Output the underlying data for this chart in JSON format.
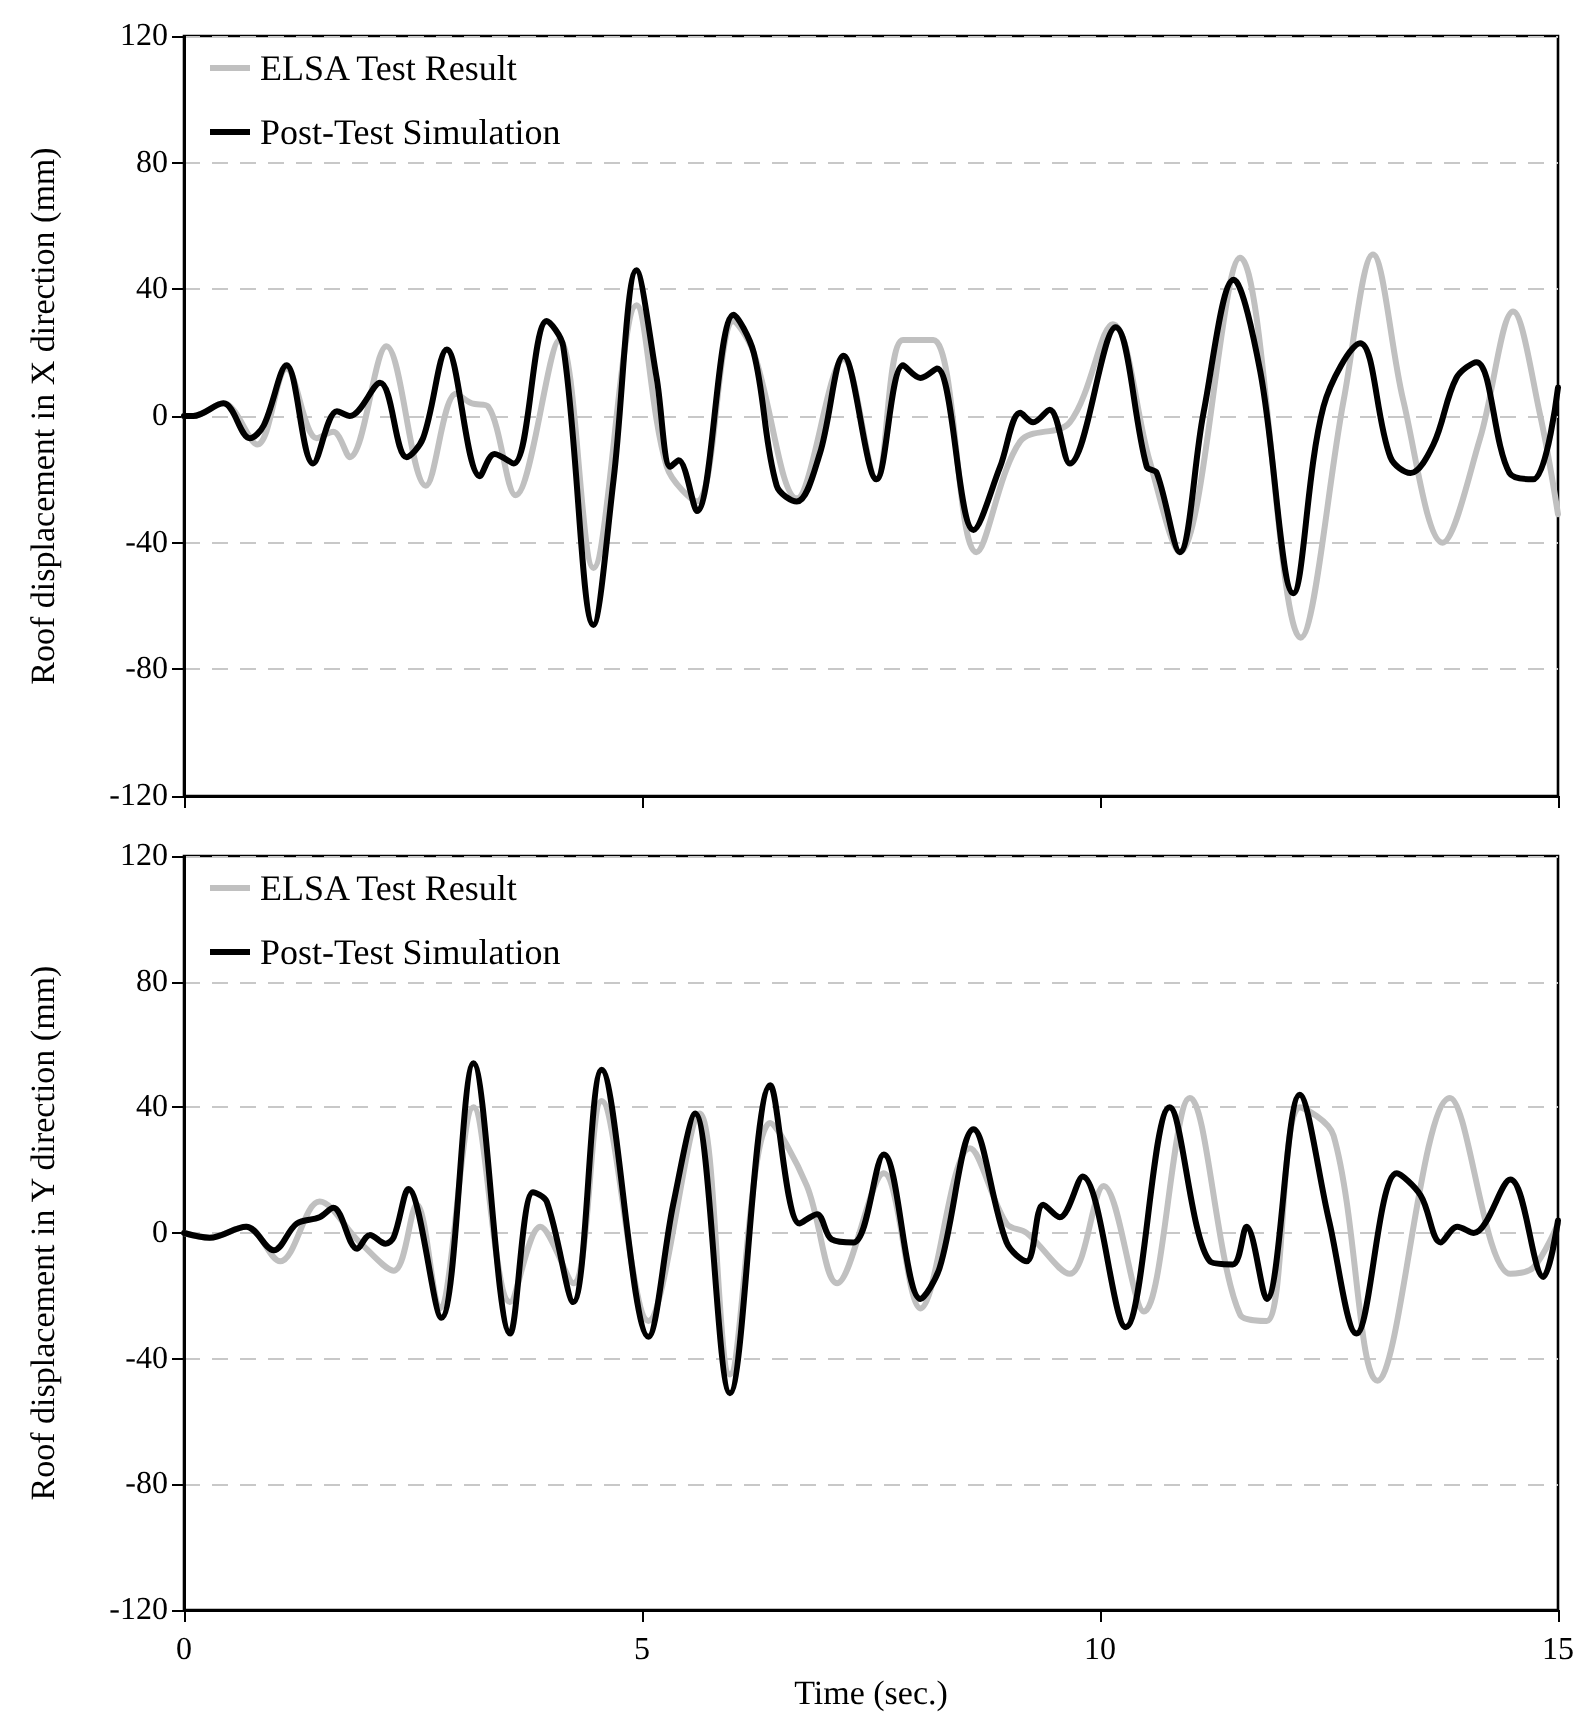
{
  "chart_data": [
    {
      "type": "line",
      "ylabel": "Roof displacement in X direction (mm)",
      "xlim": [
        0,
        15
      ],
      "xticks": [
        0,
        5,
        10,
        15
      ],
      "ylim": [
        -120,
        120
      ],
      "yticks": [
        -120,
        -80,
        -40,
        0,
        40,
        80,
        120
      ],
      "grid": "y",
      "legend": "top left",
      "tick_labels": "y",
      "marker": "none",
      "line_style": "solid",
      "series": [
        {
          "name": "ELSA Test Result",
          "color": "#c0c0c0",
          "x": [
            0,
            0.1,
            0.43,
            0.8,
            1.12,
            1.45,
            1.63,
            1.81,
            2.21,
            2.64,
            2.97,
            3.14,
            3.32,
            3.62,
            4.1,
            4.47,
            4.94,
            5.27,
            5.6,
            6.0,
            6.22,
            6.69,
            7.2,
            7.56,
            7.85,
            8.18,
            8.65,
            9.13,
            9.67,
            10.14,
            10.54,
            10.87,
            11.53,
            12.19,
            12.66,
            12.98,
            13.31,
            13.74,
            14.15,
            14.51,
            14.8,
            15
          ],
          "values": [
            0,
            0,
            4,
            -9,
            15,
            -7,
            -5,
            -13,
            22,
            -22,
            7,
            4,
            3,
            -25,
            24,
            -48,
            35,
            -16,
            -27,
            30,
            20,
            -26,
            18,
            -20,
            24,
            24,
            -43,
            -8,
            -2,
            29,
            -14,
            -43,
            50,
            -70,
            5,
            51,
            5,
            -40,
            -7,
            33,
            1,
            -31
          ]
        },
        {
          "name": "Post-Test Simulation",
          "color": "#000000",
          "x": [
            0,
            0.1,
            0.43,
            0.72,
            0.87,
            1.12,
            1.41,
            1.67,
            1.81,
            2.14,
            2.43,
            2.61,
            2.87,
            3.23,
            3.39,
            3.6,
            3.96,
            4.14,
            4.47,
            4.69,
            4.94,
            5.16,
            5.31,
            5.4,
            5.6,
            6.0,
            6.22,
            6.47,
            6.69,
            6.94,
            7.2,
            7.56,
            7.85,
            8.04,
            8.22,
            8.62,
            8.91,
            9.13,
            9.27,
            9.45,
            9.67,
            10.17,
            10.51,
            10.62,
            10.87,
            11.13,
            11.46,
            11.75,
            12.11,
            12.44,
            12.84,
            13.17,
            13.39,
            13.64,
            13.89,
            14.11,
            14.47,
            14.73,
            15
          ],
          "values": [
            0,
            0,
            4,
            -7,
            -3,
            16,
            -15,
            1.5,
            0,
            10.5,
            -13,
            -7,
            21,
            -19,
            -12,
            -15,
            30,
            22,
            -66,
            -20,
            46,
            12,
            -16,
            -14,
            -30,
            32,
            20,
            -22,
            -27,
            -12,
            19,
            -20,
            16,
            12,
            15,
            -36,
            -16,
            1,
            -2,
            2,
            -15,
            28,
            -16,
            -18,
            -43,
            1,
            43,
            14,
            -56,
            3,
            23,
            -13,
            -18,
            -9,
            12,
            17,
            -18,
            -20,
            9
          ]
        }
      ]
    },
    {
      "type": "line",
      "ylabel": "Roof displacement in Y direction (mm)",
      "xlabel": "Time (sec.)",
      "xlim": [
        0,
        15
      ],
      "xticks": [
        0,
        5,
        10,
        15
      ],
      "ylim": [
        -120,
        120
      ],
      "yticks": [
        -120,
        -80,
        -40,
        0,
        40,
        80,
        120
      ],
      "grid": "y",
      "legend": "top left",
      "marker": "none",
      "line_style": "solid",
      "series": [
        {
          "name": "ELSA Test Result",
          "color": "#c0c0c0",
          "x": [
            0,
            0.28,
            0.68,
            1.05,
            1.48,
            1.92,
            2.29,
            2.54,
            2.79,
            3.16,
            3.56,
            3.89,
            4.25,
            4.56,
            5.07,
            5.63,
            5.96,
            6.4,
            6.8,
            7.13,
            7.64,
            8.04,
            8.58,
            8.98,
            9.2,
            9.67,
            10.04,
            10.48,
            10.98,
            11.53,
            11.82,
            12.18,
            12.55,
            13.03,
            13.82,
            14.48,
            14.73,
            15
          ],
          "values": [
            0,
            -1.5,
            2,
            -9,
            10,
            -3,
            -12,
            9,
            -24,
            40,
            -22,
            2,
            -16,
            42,
            -28,
            38,
            -45,
            35,
            15,
            -16,
            19,
            -24,
            27,
            3,
            0,
            -13,
            15,
            -25,
            43,
            -26,
            -28,
            40,
            31,
            -47,
            43,
            -13,
            -11,
            3
          ]
        },
        {
          "name": "Post-Test Simulation",
          "color": "#000000",
          "x": [
            0,
            0.28,
            0.68,
            0.98,
            1.23,
            1.48,
            1.63,
            1.89,
            2.03,
            2.2,
            2.29,
            2.45,
            2.81,
            3.16,
            3.56,
            3.81,
            3.96,
            4.25,
            4.56,
            5.07,
            5.34,
            5.58,
            5.96,
            6.4,
            6.72,
            6.91,
            7.07,
            7.31,
            7.64,
            8.04,
            8.25,
            8.62,
            8.98,
            9.2,
            9.38,
            9.56,
            9.81,
            10.28,
            10.76,
            11.2,
            11.45,
            11.6,
            11.82,
            12.18,
            12.5,
            12.8,
            13.24,
            13.5,
            13.72,
            13.9,
            14.08,
            14.48,
            14.84,
            15
          ],
          "values": [
            0,
            -1.5,
            2,
            -5.5,
            3,
            5,
            8,
            -5,
            -0.6,
            -3.4,
            -1.3,
            14,
            -27,
            54,
            -32,
            13,
            10,
            -22,
            52,
            -33,
            9,
            38,
            -51,
            47,
            3,
            6,
            -2,
            -3,
            25,
            -21,
            -11,
            33,
            -3,
            -9,
            9,
            5,
            18,
            -30,
            40,
            -9,
            -10,
            2,
            -21,
            44,
            4,
            -32,
            19,
            12,
            -3,
            2,
            0,
            17,
            -14,
            4
          ]
        }
      ]
    }
  ]
}
